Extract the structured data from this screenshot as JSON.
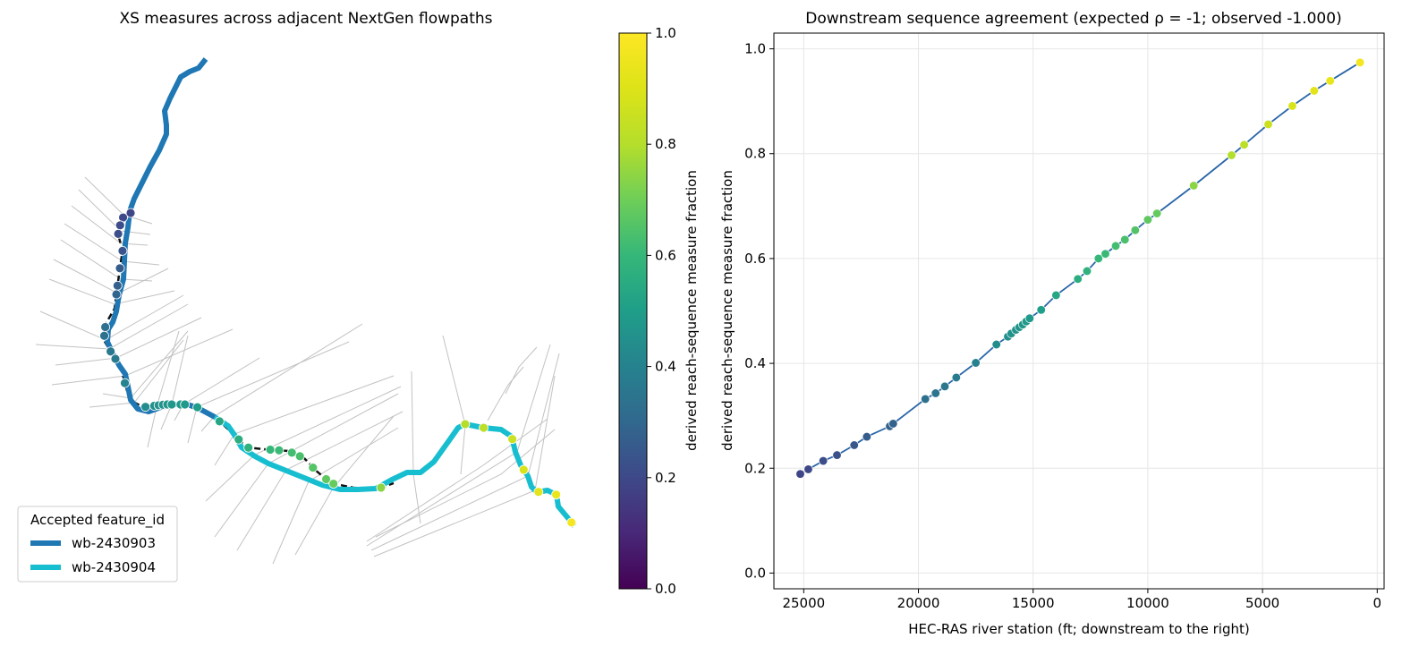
{
  "left_panel": {
    "title": "XS measures across adjacent NextGen flowpaths",
    "legend": {
      "title": "Accepted feature_id",
      "entries": [
        {
          "label": "wb-2430903",
          "color": "#1f77b4"
        },
        {
          "label": "wb-2430904",
          "color": "#17becf"
        }
      ]
    },
    "colorbar": {
      "label": "derived reach-sequence measure fraction",
      "ticks": [
        "0.0",
        "0.2",
        "0.4",
        "0.6",
        "0.8",
        "1.0"
      ],
      "colormap": "viridis"
    },
    "map_points": [
      0.19,
      0.2,
      0.21,
      0.22,
      0.24,
      0.26,
      0.28,
      0.29,
      0.33,
      0.34,
      0.36,
      0.37,
      0.4,
      0.44,
      0.45,
      0.455,
      0.46,
      0.465,
      0.47,
      0.48,
      0.485,
      0.5,
      0.53,
      0.56,
      0.575,
      0.6,
      0.61,
      0.625,
      0.635,
      0.655,
      0.675,
      0.685,
      0.74,
      0.8,
      0.82,
      0.855,
      0.89,
      0.92,
      0.94,
      0.975
    ]
  },
  "chart_data": {
    "type": "scatter",
    "title": "Downstream sequence agreement (expected ρ = -1; observed -1.000)",
    "xlabel": "HEC-RAS river station (ft; downstream to the right)",
    "ylabel": "derived reach-sequence measure fraction",
    "xlim": [
      26300,
      -300
    ],
    "ylim": [
      -0.03,
      1.03
    ],
    "x_inverted": true,
    "grid": true,
    "xticks": [
      25000,
      20000,
      15000,
      10000,
      5000,
      0
    ],
    "yticks": [
      0.0,
      0.2,
      0.4,
      0.6,
      0.8,
      1.0
    ],
    "line_color": "#2a66a8",
    "points": [
      {
        "x": 25150,
        "y": 0.189
      },
      {
        "x": 24800,
        "y": 0.198
      },
      {
        "x": 24150,
        "y": 0.214
      },
      {
        "x": 23550,
        "y": 0.225
      },
      {
        "x": 22800,
        "y": 0.244
      },
      {
        "x": 22250,
        "y": 0.26
      },
      {
        "x": 21250,
        "y": 0.28
      },
      {
        "x": 21100,
        "y": 0.285
      },
      {
        "x": 19700,
        "y": 0.332
      },
      {
        "x": 19250,
        "y": 0.343
      },
      {
        "x": 18850,
        "y": 0.356
      },
      {
        "x": 18350,
        "y": 0.373
      },
      {
        "x": 17500,
        "y": 0.401
      },
      {
        "x": 16600,
        "y": 0.436
      },
      {
        "x": 16100,
        "y": 0.451
      },
      {
        "x": 15950,
        "y": 0.457
      },
      {
        "x": 15750,
        "y": 0.464
      },
      {
        "x": 15600,
        "y": 0.469
      },
      {
        "x": 15450,
        "y": 0.474
      },
      {
        "x": 15300,
        "y": 0.48
      },
      {
        "x": 15150,
        "y": 0.486
      },
      {
        "x": 14650,
        "y": 0.502
      },
      {
        "x": 14000,
        "y": 0.53
      },
      {
        "x": 13050,
        "y": 0.561
      },
      {
        "x": 12650,
        "y": 0.576
      },
      {
        "x": 12150,
        "y": 0.6
      },
      {
        "x": 11850,
        "y": 0.609
      },
      {
        "x": 11400,
        "y": 0.624
      },
      {
        "x": 11000,
        "y": 0.636
      },
      {
        "x": 10550,
        "y": 0.654
      },
      {
        "x": 10000,
        "y": 0.674
      },
      {
        "x": 9600,
        "y": 0.686
      },
      {
        "x": 8000,
        "y": 0.739
      },
      {
        "x": 6350,
        "y": 0.797
      },
      {
        "x": 5800,
        "y": 0.817
      },
      {
        "x": 4750,
        "y": 0.856
      },
      {
        "x": 3700,
        "y": 0.891
      },
      {
        "x": 2750,
        "y": 0.92
      },
      {
        "x": 2050,
        "y": 0.939
      },
      {
        "x": 750,
        "y": 0.974
      }
    ]
  }
}
